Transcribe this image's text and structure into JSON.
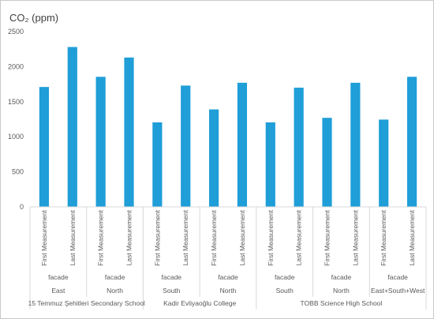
{
  "chart_data": {
    "type": "bar",
    "title": "CO₂ (ppm)",
    "ylim": [
      0,
      2500
    ],
    "yticks": [
      0,
      500,
      1000,
      1500,
      2000,
      2500
    ],
    "grid": false,
    "legend": "none",
    "bar_color": "#1f9ed8",
    "categories": [
      "First Measurement",
      "Last Measurement",
      "First Measurement",
      "Last Measurement",
      "First Measurement",
      "Last Measurement",
      "First Measurement",
      "Last Measurement",
      "First Measurement",
      "Last Measurement",
      "First Measurement",
      "Last Measurement",
      "First Measurement",
      "Last Measurement"
    ],
    "values": [
      1710,
      2280,
      1855,
      2130,
      1205,
      1730,
      1390,
      1770,
      1205,
      1700,
      1270,
      1770,
      1245,
      1855
    ],
    "level2": [
      {
        "label": "facade",
        "span": 2
      },
      {
        "label": "facade",
        "span": 2
      },
      {
        "label": "facade",
        "span": 2
      },
      {
        "label": "facade",
        "span": 2
      },
      {
        "label": "facade",
        "span": 2
      },
      {
        "label": "facade",
        "span": 2
      },
      {
        "label": "facade",
        "span": 2
      }
    ],
    "level3": [
      {
        "label": "East",
        "span": 2
      },
      {
        "label": "North",
        "span": 2
      },
      {
        "label": "South",
        "span": 2
      },
      {
        "label": "North",
        "span": 2
      },
      {
        "label": "South",
        "span": 2
      },
      {
        "label": "North",
        "span": 2
      },
      {
        "label": "East+South+West",
        "span": 2
      }
    ],
    "level4": [
      {
        "label": "15 Temmuz Şehitleri Secondary School",
        "span": 4
      },
      {
        "label": "Kadir Evliyaoğlu College",
        "span": 4
      },
      {
        "label": "TOBB Science High School",
        "span": 6
      }
    ]
  }
}
